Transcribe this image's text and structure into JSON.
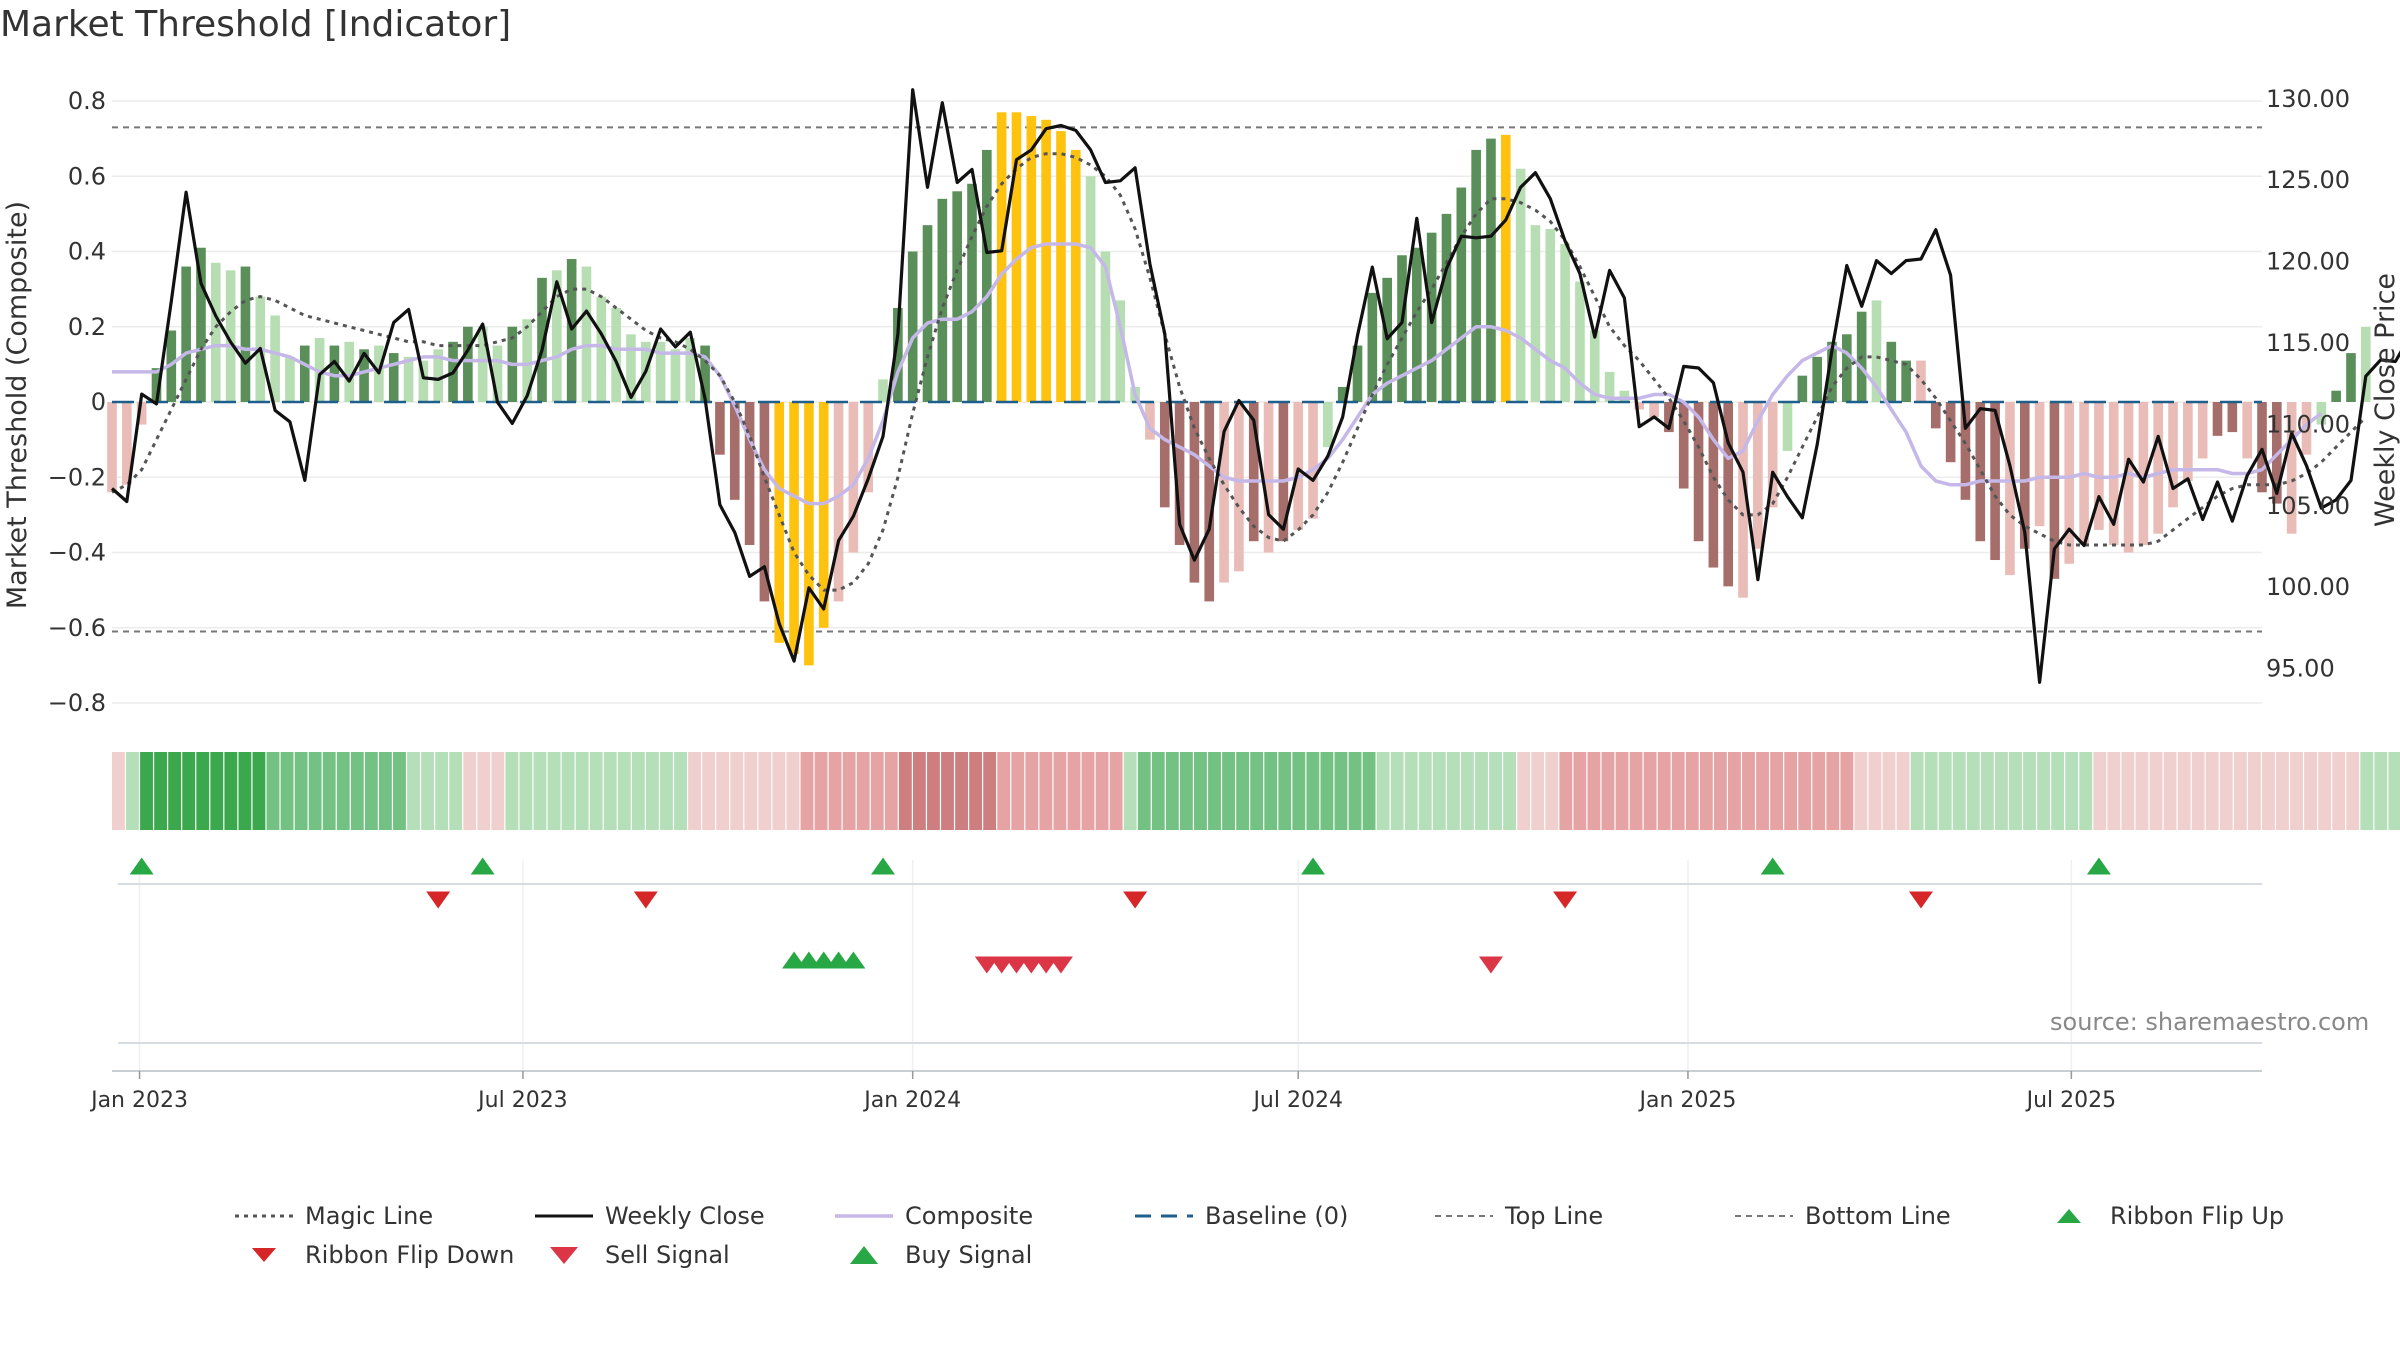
{
  "title": "Market Threshold [Indicator]",
  "source": "source: sharemaestro.com",
  "colors": {
    "magic": "#555555",
    "close": "#111111",
    "composite": "#c5b8e8",
    "baseline": "#1f5f8b",
    "refline": "#777777",
    "up": "#2ca02c",
    "down": "#d62728",
    "sell": "#dc3545",
    "buy": "#28a745",
    "bar_green_dark": "#5a8f5a",
    "bar_green_light": "#b7deb2",
    "bar_red_dark": "#a56e6b",
    "bar_red_light": "#e9bcb7",
    "bar_gold": "#ffc20e"
  },
  "legend": [
    {
      "label": "Magic Line",
      "kind": "dotted"
    },
    {
      "label": "Weekly Close",
      "kind": "solid"
    },
    {
      "label": "Composite",
      "kind": "purple"
    },
    {
      "label": "Baseline (0)",
      "kind": "dashed"
    },
    {
      "label": "Top Line",
      "kind": "refdash"
    },
    {
      "label": "Bottom Line",
      "kind": "refdash"
    },
    {
      "label": "Ribbon Flip Up",
      "kind": "tri-up"
    },
    {
      "label": "Ribbon Flip Down",
      "kind": "tri-down"
    },
    {
      "label": "Sell Signal",
      "kind": "sell"
    },
    {
      "label": "Buy Signal",
      "kind": "buy"
    }
  ],
  "chart_data": {
    "type": "bar",
    "title": "Market Threshold [Indicator]",
    "ylabel": "Market Threshold (Composite)",
    "y2label": "Weekly Close Price",
    "ylim": [
      -0.84,
      0.84
    ],
    "y2lim": [
      92.6,
      131.0
    ],
    "yticks": [
      "0.8",
      "0.6",
      "0.4",
      "0.2",
      "0",
      "−0.2",
      "−0.4",
      "−0.6",
      "−0.8"
    ],
    "y2ticks": [
      "130.00",
      "125.00",
      "120.00",
      "115.00",
      "110.00",
      "105.00",
      "100.00",
      "95.00"
    ],
    "xticks": [
      "Jan 2023",
      "Jul 2023",
      "Jan 2024",
      "Jul 2024",
      "Jan 2025",
      "Jul 2025"
    ],
    "top_line": 0.73,
    "bottom_line": -0.61,
    "grid": true,
    "x_start": "2022-12-19",
    "x_end": "2025-09-29",
    "composite_bars": [
      -0.24,
      -0.22,
      -0.06,
      0.09,
      0.19,
      0.36,
      0.41,
      0.37,
      0.35,
      0.36,
      0.28,
      0.23,
      0.12,
      0.15,
      0.17,
      0.15,
      0.16,
      0.14,
      0.15,
      0.13,
      0.12,
      0.11,
      0.14,
      0.16,
      0.2,
      0.2,
      0.15,
      0.2,
      0.22,
      0.33,
      0.35,
      0.38,
      0.36,
      0.28,
      0.25,
      0.18,
      0.16,
      0.16,
      0.14,
      0.17,
      0.15,
      -0.14,
      -0.26,
      -0.38,
      -0.53,
      -0.64,
      -0.67,
      -0.7,
      -0.6,
      -0.53,
      -0.4,
      -0.24,
      0.06,
      0.25,
      0.4,
      0.47,
      0.54,
      0.56,
      0.58,
      0.67,
      0.77,
      0.77,
      0.76,
      0.75,
      0.72,
      0.67,
      0.6,
      0.4,
      0.27,
      0.04,
      -0.1,
      -0.28,
      -0.38,
      -0.48,
      -0.53,
      -0.48,
      -0.45,
      -0.37,
      -0.4,
      -0.37,
      -0.34,
      -0.31,
      -0.12,
      0.04,
      0.15,
      0.29,
      0.33,
      0.39,
      0.41,
      0.45,
      0.5,
      0.57,
      0.67,
      0.7,
      0.71,
      0.62,
      0.47,
      0.46,
      0.42,
      0.32,
      0.19,
      0.08,
      0.03,
      -0.02,
      -0.04,
      -0.08,
      -0.23,
      -0.37,
      -0.44,
      -0.49,
      -0.52,
      -0.39,
      -0.28,
      -0.13,
      0.07,
      0.12,
      0.16,
      0.18,
      0.24,
      0.27,
      0.16,
      0.11,
      0.11,
      -0.07,
      -0.16,
      -0.26,
      -0.37,
      -0.42,
      -0.46,
      -0.39,
      -0.33,
      -0.47,
      -0.43,
      -0.38,
      -0.34,
      -0.38,
      -0.4,
      -0.38,
      -0.35,
      -0.28,
      -0.21,
      -0.15,
      -0.09,
      -0.08,
      -0.15,
      -0.24,
      -0.27,
      -0.35,
      -0.14,
      -0.06,
      0.03,
      0.13,
      0.2
    ],
    "bar_colors": [
      "rl",
      "rl",
      "rl",
      "gd",
      "gd",
      "gd",
      "gd",
      "gl",
      "gl",
      "gd",
      "gl",
      "gl",
      "gl",
      "gd",
      "gl",
      "gd",
      "gl",
      "gd",
      "gl",
      "gd",
      "gl",
      "gl",
      "gl",
      "gd",
      "gd",
      "gl",
      "gl",
      "gd",
      "gl",
      "gd",
      "gl",
      "gd",
      "gl",
      "gl",
      "gl",
      "gl",
      "gl",
      "gl",
      "gl",
      "gl",
      "gd",
      "rd",
      "rd",
      "rd",
      "rd",
      "y",
      "y",
      "y",
      "y",
      "rl",
      "rl",
      "rl",
      "gl",
      "gd",
      "gd",
      "gd",
      "gd",
      "gd",
      "gd",
      "gd",
      "y",
      "y",
      "y",
      "y",
      "y",
      "y",
      "gl",
      "gl",
      "gl",
      "gl",
      "rl",
      "rd",
      "rd",
      "rd",
      "rd",
      "rl",
      "rl",
      "rd",
      "rl",
      "rd",
      "rl",
      "rl",
      "gl",
      "gd",
      "gd",
      "gd",
      "gd",
      "gd",
      "gd",
      "gd",
      "gd",
      "gd",
      "gd",
      "gd",
      "y",
      "gl",
      "gl",
      "gl",
      "gl",
      "gl",
      "gl",
      "gl",
      "gl",
      "rl",
      "rl",
      "rd",
      "rd",
      "rd",
      "rd",
      "rd",
      "rl",
      "rl",
      "rl",
      "gl",
      "gd",
      "gd",
      "gd",
      "gd",
      "gd",
      "gl",
      "gd",
      "gd",
      "rl",
      "rd",
      "rd",
      "rd",
      "rd",
      "rd",
      "rl",
      "rd",
      "rl",
      "rd",
      "rl",
      "rl",
      "rl",
      "rl",
      "rl",
      "rl",
      "rl",
      "rl",
      "rl",
      "rl",
      "rd",
      "rd",
      "rl",
      "rd",
      "rd",
      "rl",
      "rl",
      "gl",
      "gd",
      "gd"
    ],
    "weekly_close": [
      106,
      105.2,
      111.8,
      111.2,
      117.5,
      124.2,
      118.6,
      116.6,
      115,
      113.7,
      114.6,
      110.8,
      110.1,
      106.5,
      113,
      113.8,
      112.6,
      114.3,
      113.1,
      116.2,
      117,
      112.8,
      112.7,
      113.1,
      114.5,
      116.1,
      111.3,
      110,
      111.7,
      114.5,
      118.7,
      115.8,
      116.9,
      115.5,
      113.8,
      111.6,
      113.2,
      115.8,
      114.7,
      115.6,
      111.5,
      105,
      103.3,
      100.6,
      101.2,
      97.7,
      95.4,
      99.9,
      98.6,
      102.8,
      104.3,
      106.6,
      109.2,
      115.5,
      130.5,
      124.5,
      129.7,
      124.8,
      125.6,
      120.5,
      120.6,
      126.2,
      126.8,
      128.1,
      128.3,
      128,
      126.8,
      124.8,
      124.9,
      125.7,
      119.8,
      115.5,
      103.8,
      101.6,
      103.5,
      109.5,
      111.4,
      110.2,
      104.4,
      103.5,
      107.2,
      106.5,
      108,
      110.4,
      115.4,
      119.6,
      115.2,
      116.2,
      122.6,
      116.2,
      119.5,
      121.5,
      121.4,
      121.5,
      122.5,
      124.5,
      125.4,
      123.8,
      121.2,
      119.2,
      115.3,
      119.4,
      117.7,
      109.8,
      110.4,
      109.7,
      113.5,
      113.4,
      112.5,
      108.8,
      107,
      100.4,
      107,
      105.5,
      104.2,
      108.7,
      114.5,
      119.7,
      117.2,
      120,
      119.2,
      120,
      120.1,
      121.9,
      119.1,
      109.7,
      110.9,
      110.8,
      107.4,
      103.3,
      94.1,
      102.3,
      103.5,
      102.5,
      105.5,
      103.8,
      107.8,
      106.4,
      109.2,
      106,
      106.6,
      104.1,
      106.4,
      104,
      106.8,
      108.4,
      105.7,
      109.4,
      107.4,
      104.8,
      105.3,
      106.5,
      112.9,
      113.9,
      113.8,
      115.4,
      113.3
    ],
    "magic_line": [
      -0.24,
      -0.22,
      -0.18,
      -0.1,
      -0.02,
      0.06,
      0.14,
      0.2,
      0.24,
      0.27,
      0.28,
      0.27,
      0.25,
      0.23,
      0.22,
      0.21,
      0.2,
      0.19,
      0.18,
      0.17,
      0.16,
      0.16,
      0.15,
      0.15,
      0.15,
      0.15,
      0.16,
      0.17,
      0.2,
      0.24,
      0.28,
      0.3,
      0.3,
      0.28,
      0.25,
      0.22,
      0.19,
      0.17,
      0.16,
      0.14,
      0.11,
      0.07,
      0,
      -0.09,
      -0.2,
      -0.3,
      -0.4,
      -0.46,
      -0.5,
      -0.5,
      -0.48,
      -0.43,
      -0.34,
      -0.2,
      -0.03,
      0.12,
      0.25,
      0.35,
      0.44,
      0.52,
      0.58,
      0.62,
      0.65,
      0.66,
      0.66,
      0.65,
      0.63,
      0.6,
      0.55,
      0.46,
      0.33,
      0.18,
      0.04,
      -0.07,
      -0.15,
      -0.22,
      -0.28,
      -0.33,
      -0.36,
      -0.37,
      -0.34,
      -0.3,
      -0.24,
      -0.16,
      -0.07,
      0.02,
      0.1,
      0.17,
      0.24,
      0.3,
      0.37,
      0.44,
      0.5,
      0.54,
      0.54,
      0.53,
      0.51,
      0.48,
      0.43,
      0.36,
      0.28,
      0.2,
      0.15,
      0.11,
      0.06,
      0.01,
      -0.05,
      -0.12,
      -0.2,
      -0.26,
      -0.3,
      -0.3,
      -0.27,
      -0.2,
      -0.12,
      -0.04,
      0.04,
      0.09,
      0.12,
      0.12,
      0.11,
      0.1,
      0.06,
      0.01,
      -0.05,
      -0.11,
      -0.18,
      -0.25,
      -0.3,
      -0.33,
      -0.35,
      -0.37,
      -0.38,
      -0.38,
      -0.38,
      -0.38,
      -0.38,
      -0.38,
      -0.37,
      -0.34,
      -0.31,
      -0.28,
      -0.25,
      -0.23,
      -0.22,
      -0.22,
      -0.22,
      -0.21,
      -0.19,
      -0.16,
      -0.12,
      -0.08,
      -0.04
    ],
    "composite": [
      0.08,
      0.08,
      0.08,
      0.08,
      0.1,
      0.13,
      0.14,
      0.15,
      0.15,
      0.14,
      0.14,
      0.13,
      0.12,
      0.1,
      0.08,
      0.07,
      0.07,
      0.08,
      0.09,
      0.1,
      0.11,
      0.12,
      0.12,
      0.11,
      0.11,
      0.11,
      0.11,
      0.1,
      0.1,
      0.11,
      0.12,
      0.14,
      0.15,
      0.15,
      0.14,
      0.14,
      0.14,
      0.13,
      0.13,
      0.13,
      0.12,
      0.07,
      -0.01,
      -0.1,
      -0.18,
      -0.23,
      -0.25,
      -0.27,
      -0.27,
      -0.25,
      -0.22,
      -0.15,
      -0.05,
      0.08,
      0.17,
      0.21,
      0.22,
      0.22,
      0.24,
      0.28,
      0.34,
      0.38,
      0.41,
      0.42,
      0.42,
      0.42,
      0.41,
      0.36,
      0.2,
      0.02,
      -0.07,
      -0.1,
      -0.12,
      -0.14,
      -0.17,
      -0.2,
      -0.21,
      -0.21,
      -0.21,
      -0.21,
      -0.2,
      -0.18,
      -0.15,
      -0.1,
      -0.04,
      0.02,
      0.05,
      0.07,
      0.09,
      0.11,
      0.14,
      0.17,
      0.2,
      0.2,
      0.19,
      0.17,
      0.14,
      0.11,
      0.09,
      0.05,
      0.02,
      0.01,
      0.01,
      0.01,
      0.02,
      0.02,
      0,
      -0.04,
      -0.1,
      -0.15,
      -0.13,
      -0.05,
      0.02,
      0.07,
      0.11,
      0.13,
      0.15,
      0.13,
      0.09,
      0.04,
      -0.02,
      -0.08,
      -0.17,
      -0.21,
      -0.22,
      -0.22,
      -0.21,
      -0.21,
      -0.21,
      -0.21,
      -0.2,
      -0.2,
      -0.2,
      -0.19,
      -0.2,
      -0.2,
      -0.19,
      -0.2,
      -0.19,
      -0.18,
      -0.18,
      -0.18,
      -0.18,
      -0.19,
      -0.19,
      -0.18,
      -0.14,
      -0.1,
      -0.06,
      -0.03
    ],
    "ribbon": [
      -1,
      1,
      3,
      3,
      3,
      3,
      3,
      3,
      3,
      3,
      3,
      2,
      2,
      2,
      2,
      2,
      2,
      2,
      2,
      2,
      2,
      1,
      1,
      1,
      1,
      -1,
      -1,
      -1,
      1,
      1,
      1,
      1,
      1,
      1,
      1,
      1,
      1,
      1,
      1,
      1,
      1,
      -1,
      -1,
      -1,
      -1,
      -1,
      -1,
      -1,
      -1,
      -2,
      -2,
      -2,
      -2,
      -2,
      -2,
      -2,
      -3,
      -3,
      -3,
      -3,
      -3,
      -3,
      -3,
      -2,
      -2,
      -2,
      -2,
      -2,
      -2,
      -2,
      -2,
      -2,
      1,
      2,
      2,
      2,
      2,
      2,
      2,
      2,
      2,
      2,
      2,
      2,
      2,
      2,
      2,
      2,
      2,
      2,
      1,
      1,
      1,
      1,
      1,
      1,
      1,
      1,
      1,
      1,
      -1,
      -1,
      -1,
      -2,
      -2,
      -2,
      -2,
      -2,
      -2,
      -2,
      -2,
      -2,
      -2,
      -2,
      -2,
      -2,
      -2,
      -2,
      -2,
      -2,
      -2,
      -2,
      -2,
      -2,
      -1,
      -1,
      -1,
      -1,
      1,
      1,
      1,
      1,
      1,
      1,
      1,
      1,
      1,
      1,
      1,
      1,
      1,
      -1,
      -1,
      -1,
      -1,
      -1,
      -1,
      -1,
      -1,
      -1,
      -1,
      -1,
      -1,
      -1,
      -1,
      -1,
      -1,
      -1,
      -1,
      -1,
      1,
      1,
      1,
      1,
      1,
      1,
      1,
      1,
      1,
      1,
      1
    ],
    "ribbon_flip_up": [
      "2023-01-02",
      "2023-06-12",
      "2023-12-18",
      "2024-07-08",
      "2025-02-10",
      "2025-07-14"
    ],
    "ribbon_flip_down": [
      "2023-05-22",
      "2023-08-28",
      "2024-04-15",
      "2024-11-04",
      "2025-04-21"
    ],
    "buy_signals": [
      "2023-11-06",
      "2023-11-13",
      "2023-11-20",
      "2023-11-27",
      "2023-12-04"
    ],
    "sell_signals": [
      "2024-02-05",
      "2024-02-12",
      "2024-02-19",
      "2024-02-26",
      "2024-03-04",
      "2024-03-11",
      "2024-09-30"
    ]
  }
}
